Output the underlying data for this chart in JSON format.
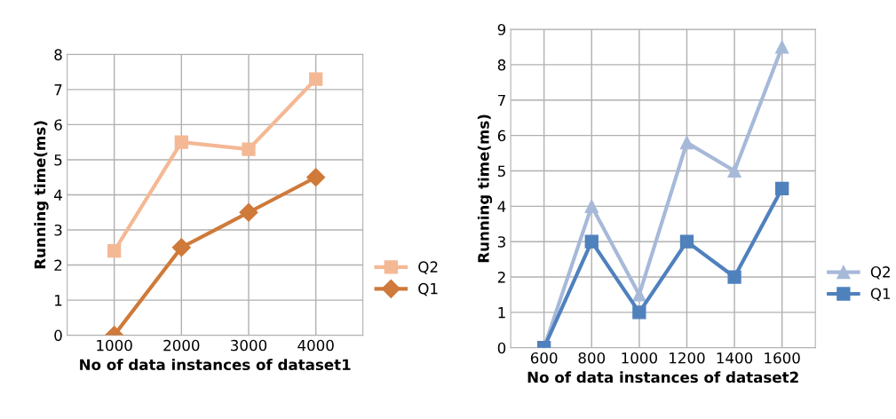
{
  "chart_data": [
    {
      "type": "line",
      "xlabel": "No of data instances of dataset1",
      "ylabel": "Running time(ms)",
      "categories": [
        "1000",
        "2000",
        "3000",
        "4000"
      ],
      "ylim": [
        0,
        8
      ],
      "yticks": [
        0,
        1,
        2,
        3,
        4,
        5,
        6,
        7,
        8
      ],
      "grid": true,
      "legend": "right",
      "series": [
        {
          "name": "Q2",
          "color": "#f4b894",
          "marker": "square",
          "values": [
            2.4,
            5.5,
            5.3,
            7.3
          ]
        },
        {
          "name": "Q1",
          "color": "#cf7a3a",
          "marker": "diamond",
          "values": [
            0,
            2.5,
            3.5,
            4.5
          ]
        }
      ]
    },
    {
      "type": "line",
      "xlabel": "No of data instances of dataset2",
      "ylabel": "Running time(ms)",
      "categories": [
        "600",
        "800",
        "1000",
        "1200",
        "1400",
        "1600"
      ],
      "ylim": [
        0,
        9
      ],
      "yticks": [
        0,
        1,
        2,
        3,
        4,
        5,
        6,
        7,
        8,
        9
      ],
      "grid": true,
      "legend": "right",
      "series": [
        {
          "name": "Q2",
          "color": "#a7b9d9",
          "marker": "triangle",
          "values": [
            0,
            4,
            1.5,
            5.8,
            5,
            8.5
          ]
        },
        {
          "name": "Q1",
          "color": "#4f81bd",
          "marker": "square",
          "values": [
            0,
            3,
            1,
            3,
            2,
            4.5
          ]
        }
      ]
    }
  ]
}
